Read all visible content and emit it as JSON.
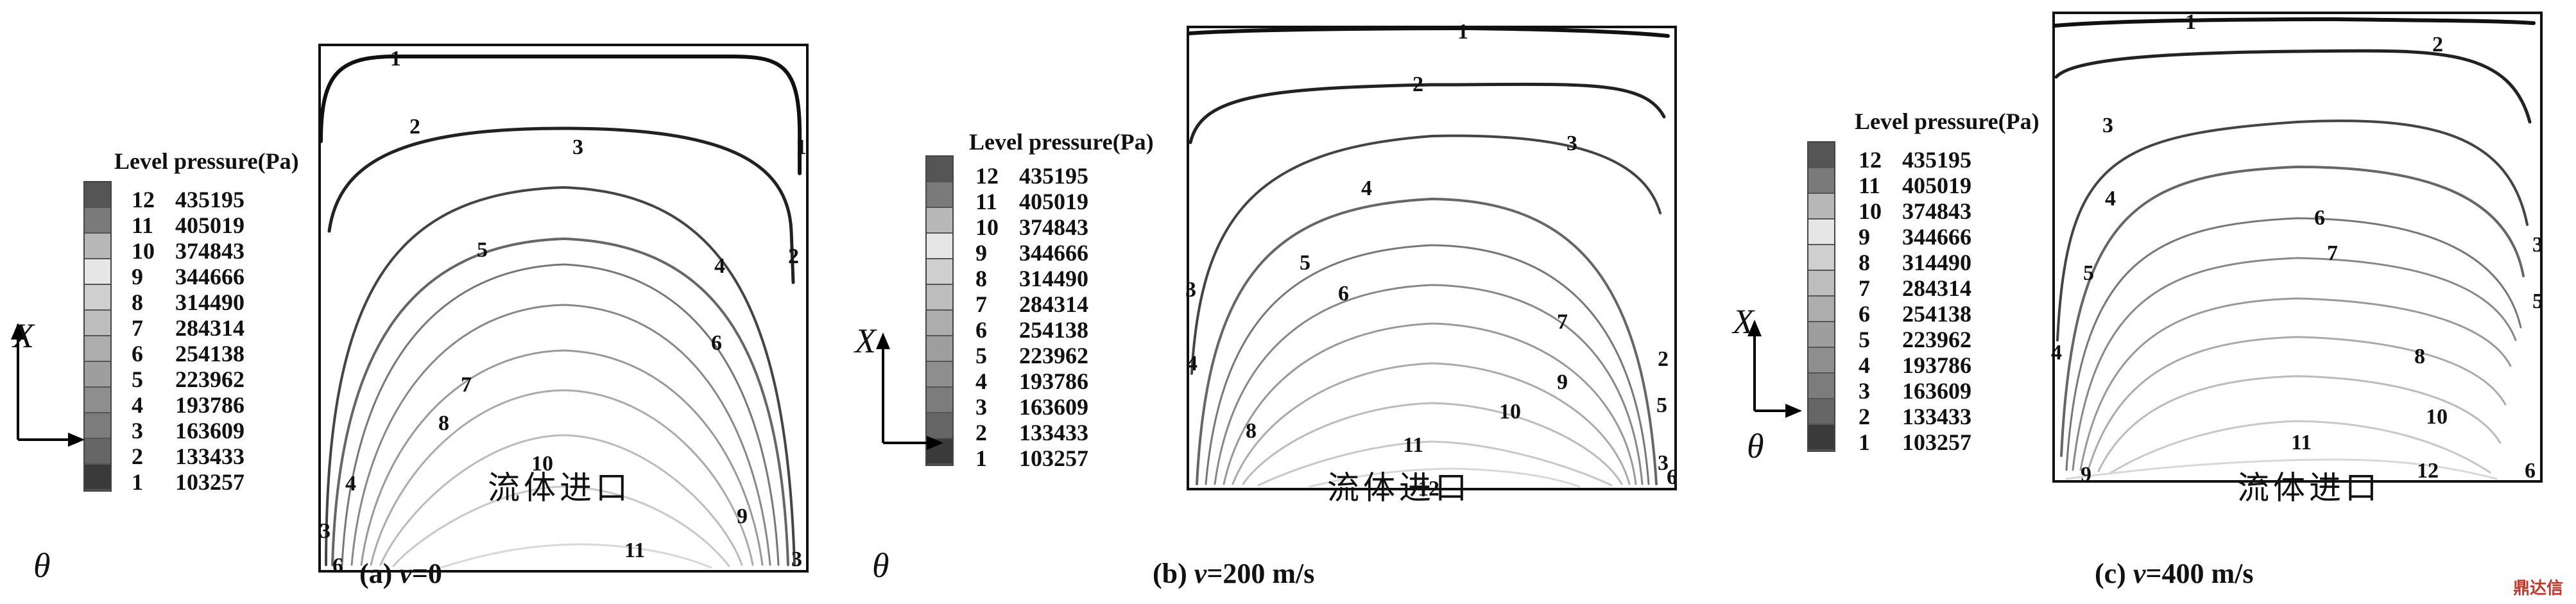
{
  "legend": {
    "title": "Level pressure(Pa)",
    "levels": [
      {
        "level": "12",
        "pressure": "435195",
        "color": "#555555"
      },
      {
        "level": "11",
        "pressure": "405019",
        "color": "#7a7a7a"
      },
      {
        "level": "10",
        "pressure": "374843",
        "color": "#b8b8b8"
      },
      {
        "level": "9",
        "pressure": "344666",
        "color": "#e6e6e6"
      },
      {
        "level": "8",
        "pressure": "314490",
        "color": "#cfcfcf"
      },
      {
        "level": "7",
        "pressure": "284314",
        "color": "#bdbdbd"
      },
      {
        "level": "6",
        "pressure": "254138",
        "color": "#adadad"
      },
      {
        "level": "5",
        "pressure": "223962",
        "color": "#9e9e9e"
      },
      {
        "level": "4",
        "pressure": "193786",
        "color": "#8e8e8e"
      },
      {
        "level": "3",
        "pressure": "163609",
        "color": "#7c7c7c"
      },
      {
        "level": "2",
        "pressure": "133433",
        "color": "#666666"
      },
      {
        "level": "1",
        "pressure": "103257",
        "color": "#3a3a3a"
      }
    ]
  },
  "axis": {
    "x_label": "X",
    "theta_label": "θ"
  },
  "inlet_label": "流体进口",
  "panels": [
    {
      "id": "a",
      "caption_prefix": "(a) ",
      "caption_var": "v",
      "caption_value": "=0"
    },
    {
      "id": "b",
      "caption_prefix": "(b) ",
      "caption_var": "v",
      "caption_value": "=200 m/s"
    },
    {
      "id": "c",
      "caption_prefix": "(c) ",
      "caption_var": "v",
      "caption_value": "=400 m/s"
    }
  ],
  "watermark": "鼎达信"
}
